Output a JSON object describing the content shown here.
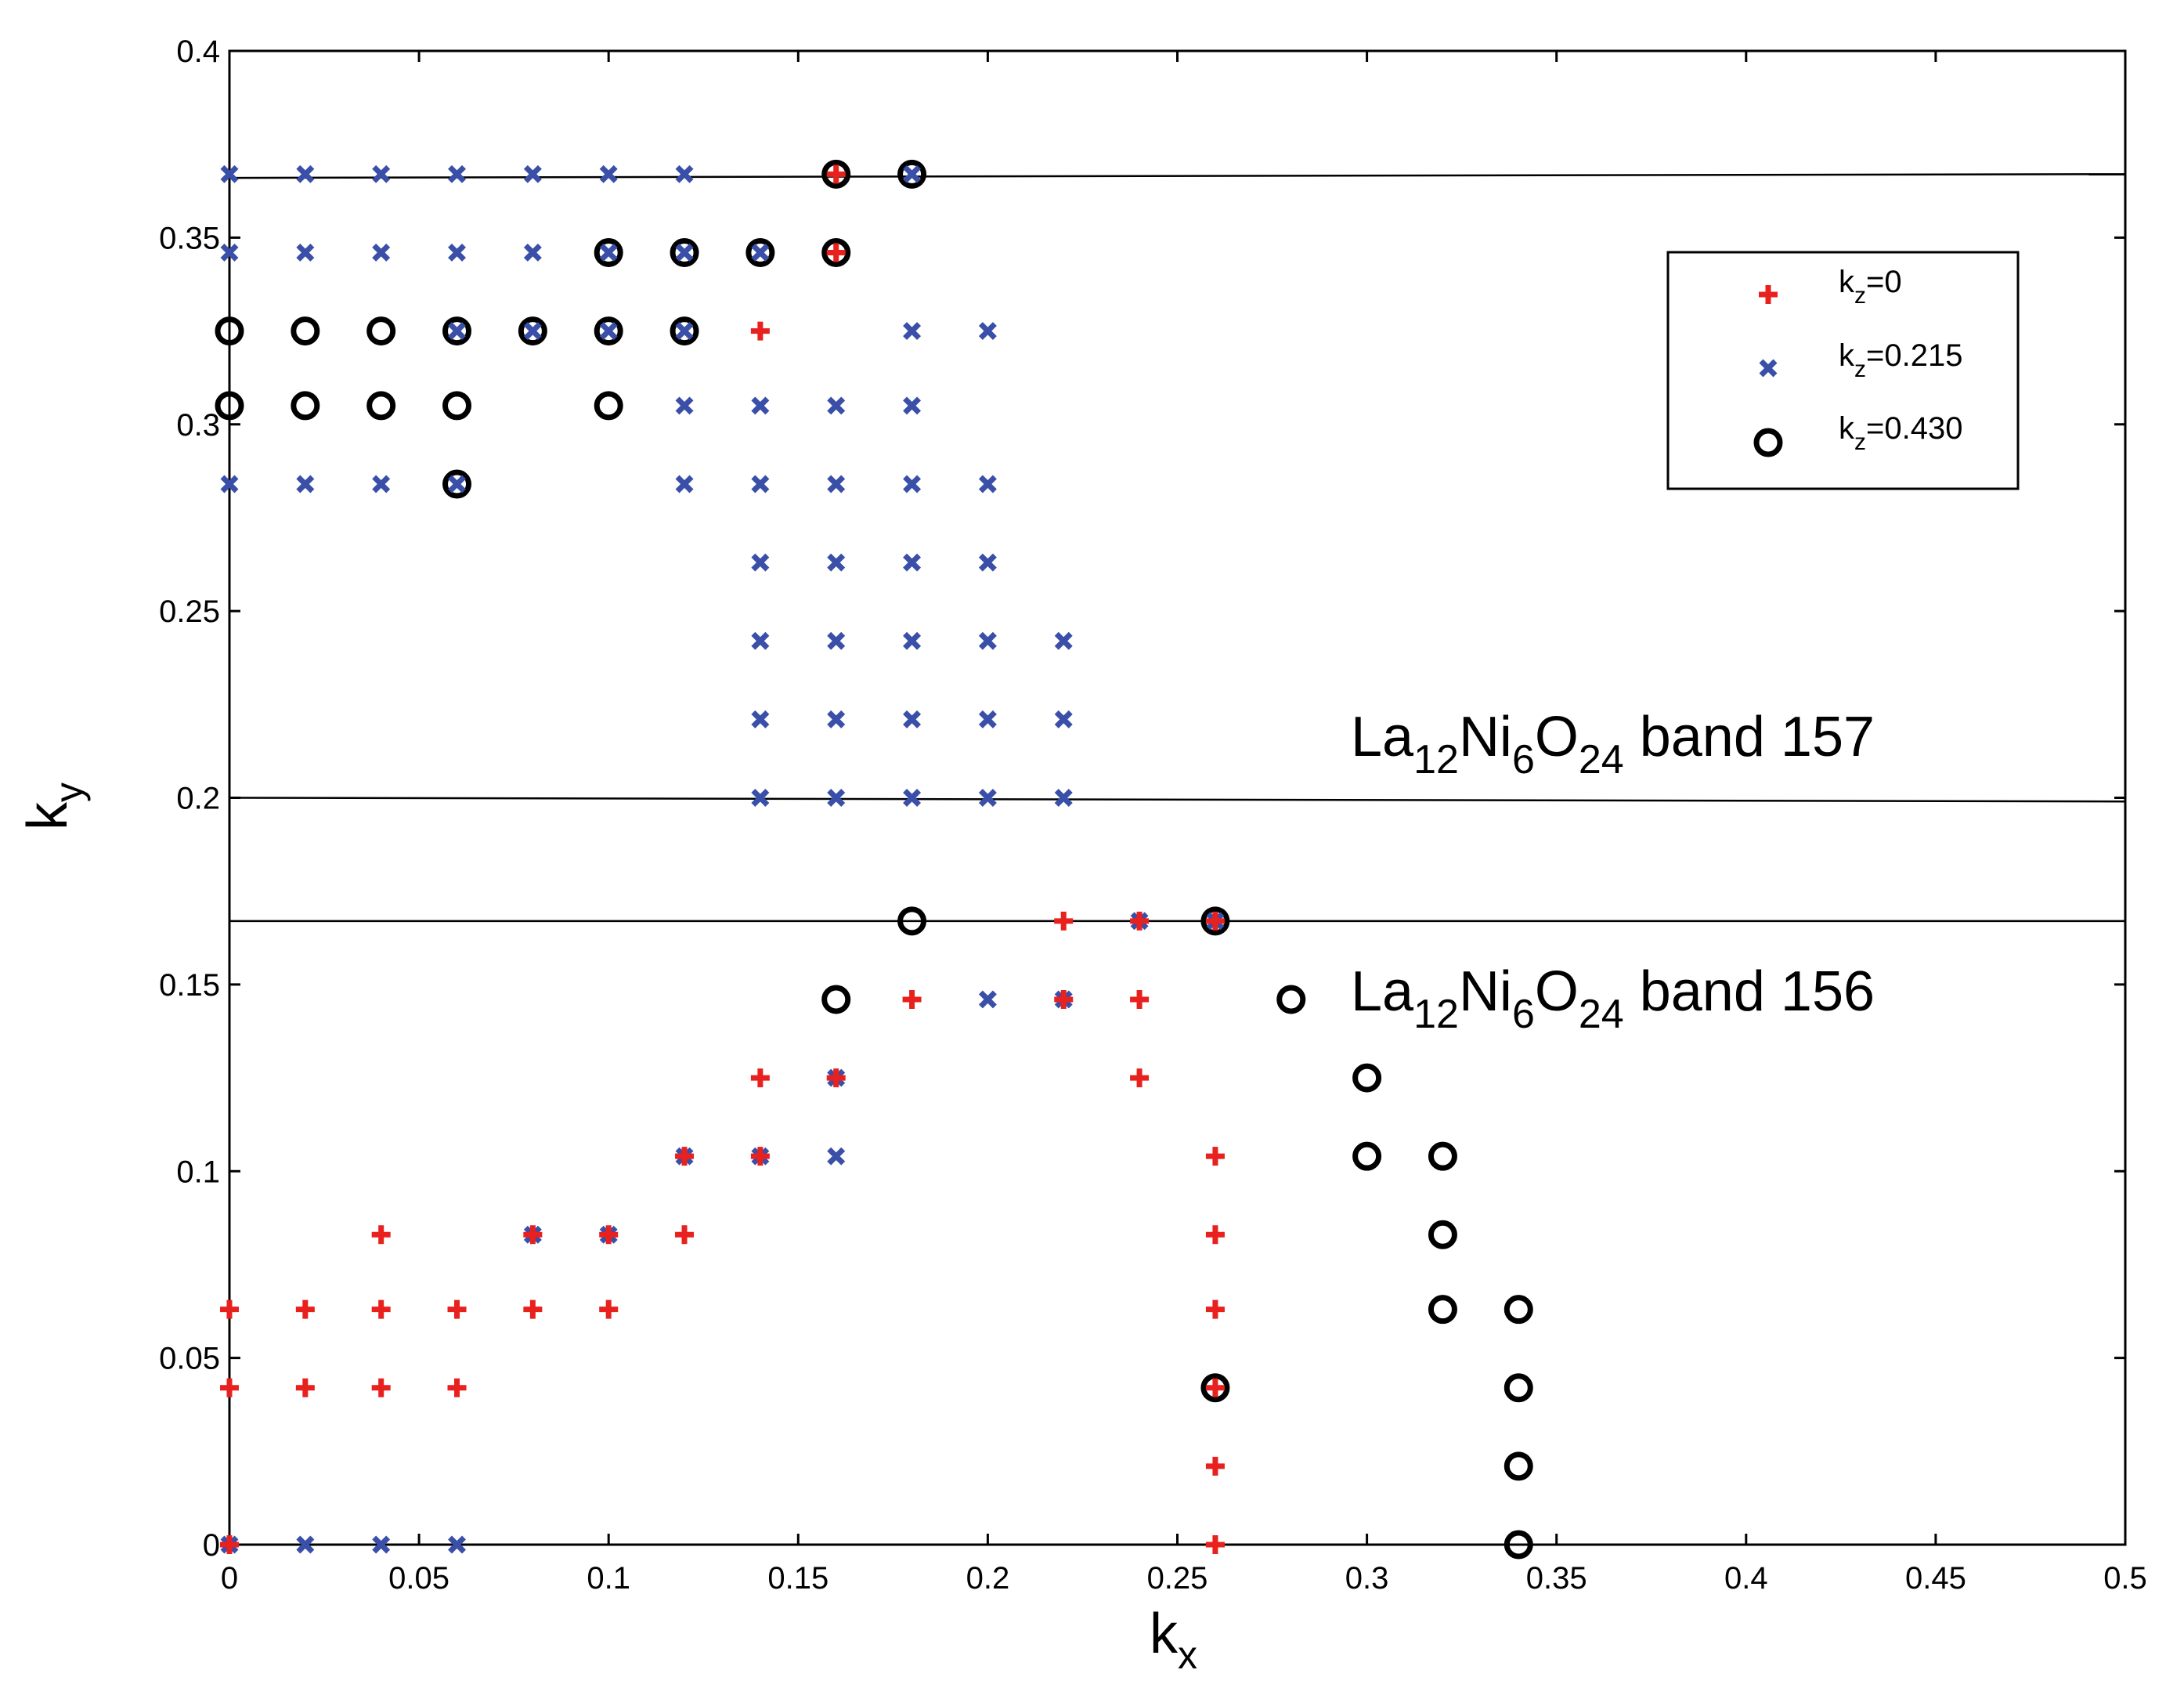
{
  "chart_data": {
    "type": "scatter",
    "title": "",
    "xlabel": {
      "main": "k",
      "sub": "x"
    },
    "ylabel": {
      "main": "k",
      "sub": "y"
    },
    "xlim": [
      0,
      0.5
    ],
    "ylim": [
      0,
      0.4
    ],
    "xticks": [
      "0",
      "0.05",
      "0.1",
      "0.15",
      "0.2",
      "0.25",
      "0.3",
      "0.35",
      "0.4",
      "0.45",
      "0.5"
    ],
    "yticks": [
      "0",
      "0.05",
      "0.1",
      "0.15",
      "0.2",
      "0.25",
      "0.3",
      "0.35",
      "0.4"
    ],
    "xtick_values": [
      0,
      0.05,
      0.1,
      0.15,
      0.2,
      0.25,
      0.3,
      0.35,
      0.4,
      0.45,
      0.5
    ],
    "ytick_values": [
      0,
      0.05,
      0.1,
      0.15,
      0.2,
      0.25,
      0.3,
      0.35,
      0.4
    ],
    "grid": false,
    "legend_position": "top-right",
    "series": [
      {
        "name": "k_z=0",
        "legend": {
          "main": "k",
          "sub": "z",
          "rest": "=0"
        },
        "marker": "plus",
        "color": "#e8211f",
        "points": [
          [
            0,
            0
          ],
          [
            0.26,
            0
          ],
          [
            0.26,
            0.021
          ],
          [
            0,
            0.042
          ],
          [
            0.02,
            0.042
          ],
          [
            0.04,
            0.042
          ],
          [
            0.06,
            0.042
          ],
          [
            0.26,
            0.042
          ],
          [
            0,
            0.063
          ],
          [
            0.02,
            0.063
          ],
          [
            0.04,
            0.063
          ],
          [
            0.06,
            0.063
          ],
          [
            0.08,
            0.063
          ],
          [
            0.1,
            0.063
          ],
          [
            0.26,
            0.063
          ],
          [
            0.04,
            0.083
          ],
          [
            0.08,
            0.083
          ],
          [
            0.1,
            0.083
          ],
          [
            0.12,
            0.083
          ],
          [
            0.26,
            0.083
          ],
          [
            0.12,
            0.104
          ],
          [
            0.14,
            0.104
          ],
          [
            0.26,
            0.104
          ],
          [
            0.14,
            0.125
          ],
          [
            0.16,
            0.125
          ],
          [
            0.24,
            0.125
          ],
          [
            0.18,
            0.146
          ],
          [
            0.22,
            0.146
          ],
          [
            0.24,
            0.146
          ],
          [
            0.22,
            0.167
          ],
          [
            0.24,
            0.167
          ],
          [
            0.26,
            0.167
          ],
          [
            0.14,
            0.325
          ],
          [
            0.16,
            0.346
          ],
          [
            0.16,
            0.367
          ]
        ]
      },
      {
        "name": "k_z=0.215",
        "legend": {
          "main": "k",
          "sub": "z",
          "rest": "=0.215"
        },
        "marker": "x",
        "color": "#3a4fa8",
        "points": [
          [
            0,
            0
          ],
          [
            0.02,
            0
          ],
          [
            0.04,
            0
          ],
          [
            0.06,
            0
          ],
          [
            0.08,
            0.083
          ],
          [
            0.1,
            0.083
          ],
          [
            0.12,
            0.104
          ],
          [
            0.14,
            0.104
          ],
          [
            0.16,
            0.104
          ],
          [
            0.16,
            0.125
          ],
          [
            0.2,
            0.146
          ],
          [
            0.22,
            0.146
          ],
          [
            0.24,
            0.167
          ],
          [
            0.26,
            0.167
          ],
          [
            0.14,
            0.2
          ],
          [
            0.16,
            0.2
          ],
          [
            0.18,
            0.2
          ],
          [
            0.2,
            0.2
          ],
          [
            0.22,
            0.2
          ],
          [
            0.14,
            0.221
          ],
          [
            0.16,
            0.221
          ],
          [
            0.18,
            0.221
          ],
          [
            0.2,
            0.221
          ],
          [
            0.22,
            0.221
          ],
          [
            0.14,
            0.242
          ],
          [
            0.16,
            0.242
          ],
          [
            0.18,
            0.242
          ],
          [
            0.2,
            0.242
          ],
          [
            0.22,
            0.242
          ],
          [
            0.14,
            0.263
          ],
          [
            0.16,
            0.263
          ],
          [
            0.18,
            0.263
          ],
          [
            0.2,
            0.263
          ],
          [
            0,
            0.284
          ],
          [
            0.02,
            0.284
          ],
          [
            0.04,
            0.284
          ],
          [
            0.06,
            0.284
          ],
          [
            0.12,
            0.284
          ],
          [
            0.14,
            0.284
          ],
          [
            0.16,
            0.284
          ],
          [
            0.18,
            0.284
          ],
          [
            0.2,
            0.284
          ],
          [
            0.12,
            0.305
          ],
          [
            0.14,
            0.305
          ],
          [
            0.16,
            0.305
          ],
          [
            0.18,
            0.305
          ],
          [
            0.06,
            0.325
          ],
          [
            0.08,
            0.325
          ],
          [
            0.1,
            0.325
          ],
          [
            0.12,
            0.325
          ],
          [
            0.18,
            0.325
          ],
          [
            0.2,
            0.325
          ],
          [
            0,
            0.346
          ],
          [
            0.02,
            0.346
          ],
          [
            0.04,
            0.346
          ],
          [
            0.06,
            0.346
          ],
          [
            0.08,
            0.346
          ],
          [
            0.1,
            0.346
          ],
          [
            0.12,
            0.346
          ],
          [
            0.14,
            0.346
          ],
          [
            0,
            0.367
          ],
          [
            0.02,
            0.367
          ],
          [
            0.04,
            0.367
          ],
          [
            0.06,
            0.367
          ],
          [
            0.08,
            0.367
          ],
          [
            0.1,
            0.367
          ],
          [
            0.12,
            0.367
          ],
          [
            0.18,
            0.367
          ]
        ]
      },
      {
        "name": "k_z=0.430",
        "legend": {
          "main": "k",
          "sub": "z",
          "rest": "=0.430"
        },
        "marker": "circle",
        "color": "#000000",
        "points": [
          [
            0.34,
            0
          ],
          [
            0.34,
            0.021
          ],
          [
            0.26,
            0.042
          ],
          [
            0.34,
            0.042
          ],
          [
            0.32,
            0.063
          ],
          [
            0.34,
            0.063
          ],
          [
            0.32,
            0.083
          ],
          [
            0.3,
            0.104
          ],
          [
            0.32,
            0.104
          ],
          [
            0.3,
            0.125
          ],
          [
            0.16,
            0.146
          ],
          [
            0.28,
            0.146
          ],
          [
            0.18,
            0.167
          ],
          [
            0.26,
            0.167
          ],
          [
            0.06,
            0.284
          ],
          [
            0,
            0.305
          ],
          [
            0.02,
            0.305
          ],
          [
            0.04,
            0.305
          ],
          [
            0.06,
            0.305
          ],
          [
            0.1,
            0.305
          ],
          [
            0,
            0.325
          ],
          [
            0.02,
            0.325
          ],
          [
            0.04,
            0.325
          ],
          [
            0.06,
            0.325
          ],
          [
            0.08,
            0.325
          ],
          [
            0.1,
            0.325
          ],
          [
            0.12,
            0.325
          ],
          [
            0.1,
            0.346
          ],
          [
            0.12,
            0.346
          ],
          [
            0.14,
            0.346
          ],
          [
            0.16,
            0.346
          ],
          [
            0.16,
            0.367
          ],
          [
            0.18,
            0.367
          ]
        ]
      }
    ],
    "reference_lines": [
      {
        "y_start": 0.366,
        "y_end": 0.367
      },
      {
        "y_start": 0.2,
        "y_end": 0.199
      },
      {
        "y_start": 0.167,
        "y_end": 0.167
      }
    ],
    "annotations": [
      {
        "parts": [
          "La",
          "12",
          "Ni",
          "6",
          "O",
          "24",
          " band 157"
        ],
        "x": 0.3,
        "y": 0.208
      },
      {
        "parts": [
          "La",
          "12",
          "Ni",
          "6",
          "O",
          "24",
          " band 156"
        ],
        "x": 0.3,
        "y": 0.14
      }
    ]
  }
}
